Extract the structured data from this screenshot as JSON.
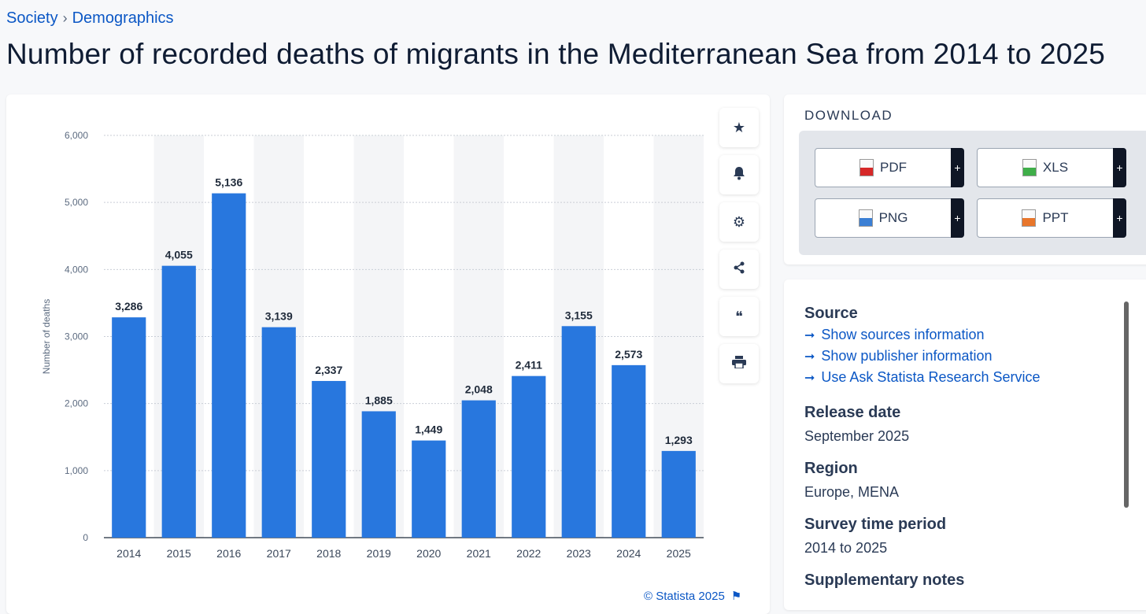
{
  "breadcrumb": {
    "items": [
      "Society",
      "Demographics"
    ],
    "separator": "›"
  },
  "page_title": "Number of recorded deaths of migrants in the Mediterranean Sea from 2014 to 2025",
  "chart_data": {
    "type": "bar",
    "categories": [
      "2014",
      "2015",
      "2016",
      "2017",
      "2018",
      "2019",
      "2020",
      "2021",
      "2022",
      "2023",
      "2024",
      "2025"
    ],
    "values": [
      3286,
      4055,
      5136,
      3139,
      2337,
      1885,
      1449,
      2048,
      2411,
      3155,
      2573,
      1293
    ],
    "value_labels": [
      "3,286",
      "4,055",
      "5,136",
      "3,139",
      "2,337",
      "1,885",
      "1,449",
      "2,048",
      "2,411",
      "3,155",
      "2,573",
      "1,293"
    ],
    "ylabel": "Number of deaths",
    "yticks": [
      "0",
      "1,000",
      "2,000",
      "3,000",
      "4,000",
      "5,000",
      "6,000"
    ],
    "ytick_values": [
      0,
      1000,
      2000,
      3000,
      4000,
      5000,
      6000
    ],
    "ylim": [
      0,
      6000
    ],
    "bar_color": "#2877de",
    "grid": true
  },
  "copyright": "© Statista 2025",
  "tools": [
    {
      "name": "favorite",
      "icon": "★"
    },
    {
      "name": "notification",
      "icon": "🔔"
    },
    {
      "name": "settings",
      "icon": "⚙"
    },
    {
      "name": "share",
      "icon": "⋖"
    },
    {
      "name": "cite",
      "icon": "❝"
    },
    {
      "name": "print",
      "icon": "⎙"
    }
  ],
  "download": {
    "title": "DOWNLOAD",
    "buttons": [
      {
        "label": "PDF",
        "color": "#d62828",
        "plus": "+"
      },
      {
        "label": "XLS",
        "color": "#3fae49",
        "plus": "+"
      },
      {
        "label": "PNG",
        "color": "#3b7fd4",
        "plus": "+"
      },
      {
        "label": "PPT",
        "color": "#e8762b",
        "plus": "+"
      }
    ]
  },
  "info": {
    "source_heading": "Source",
    "links": [
      "Show sources information",
      "Show publisher information",
      "Use Ask Statista Research Service"
    ],
    "release_heading": "Release date",
    "release_value": "September 2025",
    "region_heading": "Region",
    "region_value": "Europe, MENA",
    "period_heading": "Survey time period",
    "period_value": "2014 to 2025",
    "notes_heading": "Supplementary notes"
  }
}
